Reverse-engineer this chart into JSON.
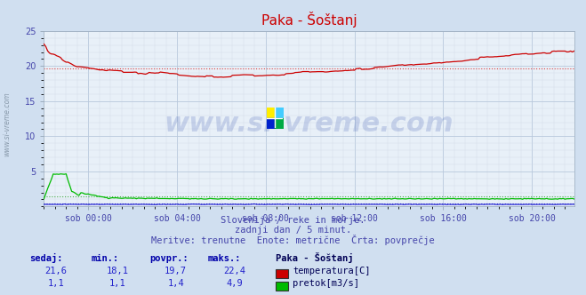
{
  "title": "Paka - Šoštanj",
  "bg_color": "#d0dff0",
  "plot_bg_color": "#e8f0f8",
  "grid_major_color": "#b8c8dc",
  "grid_minor_color": "#d0d8e8",
  "tick_color": "#4444aa",
  "text_color": "#4444aa",
  "watermark": "www.si-vreme.com",
  "sidebar_text": "www.si-vreme.com",
  "subtitle_lines": [
    "Slovenija / reke in morje.",
    "zadnji dan / 5 minut.",
    "Meritve: trenutne  Enote: metrične  Črta: povprečje"
  ],
  "xlim": [
    0,
    287
  ],
  "xtick_positions": [
    24,
    72,
    120,
    168,
    216,
    264
  ],
  "xtick_labels": [
    "sob 00:00",
    "sob 04:00",
    "sob 08:00",
    "sob 12:00",
    "sob 16:00",
    "sob 20:00"
  ],
  "ylim": [
    0,
    25
  ],
  "ytick_positions": [
    5,
    10,
    15,
    20,
    25
  ],
  "ytick_labels": [
    "5",
    "10",
    "15",
    "20",
    "25"
  ],
  "temp_avg": 19.7,
  "temp_color": "#cc0000",
  "temp_avg_color": "#dd4444",
  "flow_avg": 1.4,
  "flow_color": "#00bb00",
  "flow_avg_color": "#44aa44",
  "height_color": "#0000cc",
  "height_avg": 0.4,
  "height_avg_color": "#4444cc",
  "legend_station": "Paka - Šoštanj",
  "legend_temp_label": "temperatura[C]",
  "legend_flow_label": "pretok[m3/s]",
  "table_headers": [
    "sedaj:",
    "min.:",
    "povpr.:",
    "maks.:"
  ],
  "table_temp": [
    "21,6",
    "18,1",
    "19,7",
    "22,4"
  ],
  "table_flow": [
    "1,1",
    "1,1",
    "1,4",
    "4,9"
  ],
  "n_points": 288
}
